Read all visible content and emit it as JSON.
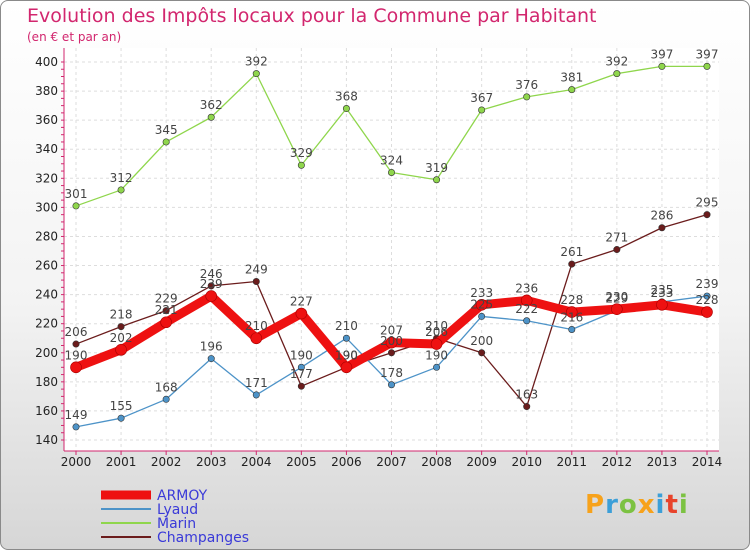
{
  "title": "Evolution des Impôts locaux pour la Commune par Habitant",
  "subtitle": "(en € et par an)",
  "logo": {
    "text": "Proxiti",
    "colors": [
      "#f7a21b",
      "#3c9fd8",
      "#7cc242",
      "#f7a21b",
      "#3c9fd8",
      "#e8432b",
      "#7cc242"
    ]
  },
  "chart_data": {
    "type": "line",
    "x": [
      "2000",
      "2001",
      "2002",
      "2003",
      "2004",
      "2005",
      "2006",
      "2007",
      "2008",
      "2009",
      "2010",
      "2011",
      "2012",
      "2013",
      "2014"
    ],
    "ylim": [
      140,
      400
    ],
    "yticks": [
      140,
      160,
      180,
      200,
      220,
      240,
      260,
      280,
      300,
      320,
      340,
      360,
      380,
      400
    ],
    "grid": true,
    "legend_position": "bottom-left",
    "series": [
      {
        "name": "ARMOY",
        "color": "#ee1111",
        "values": [
          190,
          202,
          221,
          239,
          210,
          227,
          190,
          207,
          206,
          233,
          236,
          228,
          230,
          233,
          228
        ]
      },
      {
        "name": "Lyaud",
        "color": "#4d93c8",
        "values": [
          149,
          155,
          168,
          196,
          171,
          190,
          210,
          178,
          190,
          225,
          222,
          216,
          229,
          235,
          239
        ]
      },
      {
        "name": "Marin",
        "color": "#8fd64c",
        "values": [
          301,
          312,
          345,
          362,
          392,
          329,
          368,
          324,
          319,
          367,
          376,
          381,
          392,
          397,
          397
        ]
      },
      {
        "name": "Champanges",
        "color": "#6b1c1c",
        "values": [
          206,
          218,
          229,
          246,
          249,
          177,
          190,
          200,
          210,
          200,
          163,
          261,
          271,
          286,
          295
        ]
      }
    ]
  }
}
